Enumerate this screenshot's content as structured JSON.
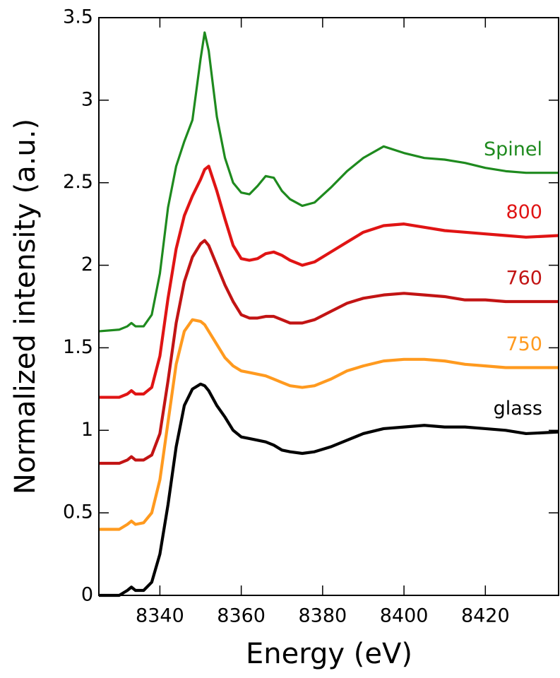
{
  "chart_data": {
    "type": "line",
    "x_label": "Energy (eV)",
    "y_label": "Normalized intensity (a.u.)",
    "x": [
      8325,
      8330,
      8332,
      8333,
      8334,
      8336,
      8338,
      8340,
      8342,
      8344,
      8346,
      8348,
      8350,
      8351,
      8352,
      8354,
      8356,
      8358,
      8360,
      8362,
      8364,
      8366,
      8368,
      8370,
      8372,
      8375,
      8378,
      8382,
      8386,
      8390,
      8395,
      8400,
      8405,
      8410,
      8415,
      8420,
      8425,
      8430,
      8438
    ],
    "series": [
      {
        "name": "glass",
        "color": "#000000",
        "values": [
          0,
          0,
          0.03,
          0.05,
          0.03,
          0.03,
          0.08,
          0.25,
          0.55,
          0.9,
          1.15,
          1.25,
          1.28,
          1.27,
          1.24,
          1.15,
          1.08,
          1.0,
          0.96,
          0.95,
          0.94,
          0.93,
          0.91,
          0.88,
          0.87,
          0.86,
          0.87,
          0.9,
          0.94,
          0.98,
          1.01,
          1.02,
          1.03,
          1.02,
          1.02,
          1.01,
          1.0,
          0.98,
          0.99
        ]
      },
      {
        "name": "750",
        "color": "#ff9a1f",
        "values": [
          0.4,
          0.4,
          0.43,
          0.45,
          0.43,
          0.44,
          0.5,
          0.7,
          1.05,
          1.4,
          1.6,
          1.67,
          1.66,
          1.64,
          1.6,
          1.52,
          1.44,
          1.39,
          1.36,
          1.35,
          1.34,
          1.33,
          1.31,
          1.29,
          1.27,
          1.26,
          1.27,
          1.31,
          1.36,
          1.39,
          1.42,
          1.43,
          1.43,
          1.42,
          1.4,
          1.39,
          1.38,
          1.38,
          1.38
        ]
      },
      {
        "name": "760",
        "color": "#c21414",
        "values": [
          0.8,
          0.8,
          0.82,
          0.84,
          0.82,
          0.82,
          0.85,
          0.98,
          1.3,
          1.65,
          1.9,
          2.05,
          2.13,
          2.15,
          2.12,
          2.0,
          1.88,
          1.78,
          1.7,
          1.68,
          1.68,
          1.69,
          1.69,
          1.67,
          1.65,
          1.65,
          1.67,
          1.72,
          1.77,
          1.8,
          1.82,
          1.83,
          1.82,
          1.81,
          1.79,
          1.79,
          1.78,
          1.78,
          1.78
        ]
      },
      {
        "name": "800",
        "color": "#e01414",
        "values": [
          1.2,
          1.2,
          1.22,
          1.24,
          1.22,
          1.22,
          1.26,
          1.45,
          1.8,
          2.1,
          2.3,
          2.42,
          2.52,
          2.58,
          2.6,
          2.45,
          2.28,
          2.12,
          2.04,
          2.03,
          2.04,
          2.07,
          2.08,
          2.06,
          2.03,
          2.0,
          2.02,
          2.08,
          2.14,
          2.2,
          2.24,
          2.25,
          2.23,
          2.21,
          2.2,
          2.19,
          2.18,
          2.17,
          2.18
        ]
      },
      {
        "name": "Spinel",
        "color": "#1e8a1e",
        "values": [
          1.6,
          1.61,
          1.63,
          1.65,
          1.63,
          1.63,
          1.7,
          1.95,
          2.35,
          2.6,
          2.75,
          2.88,
          3.25,
          3.41,
          3.3,
          2.9,
          2.65,
          2.5,
          2.44,
          2.43,
          2.48,
          2.54,
          2.53,
          2.45,
          2.4,
          2.36,
          2.38,
          2.47,
          2.57,
          2.65,
          2.72,
          2.68,
          2.65,
          2.64,
          2.62,
          2.59,
          2.57,
          2.56,
          2.56
        ]
      }
    ],
    "xlim": [
      8325,
      8438
    ],
    "ylim": [
      0,
      3.5
    ],
    "xticks": [
      8340,
      8360,
      8380,
      8400,
      8420
    ],
    "yticks": [
      0,
      0.5,
      1,
      1.5,
      2,
      2.5,
      3,
      3.5
    ],
    "grid": false
  }
}
